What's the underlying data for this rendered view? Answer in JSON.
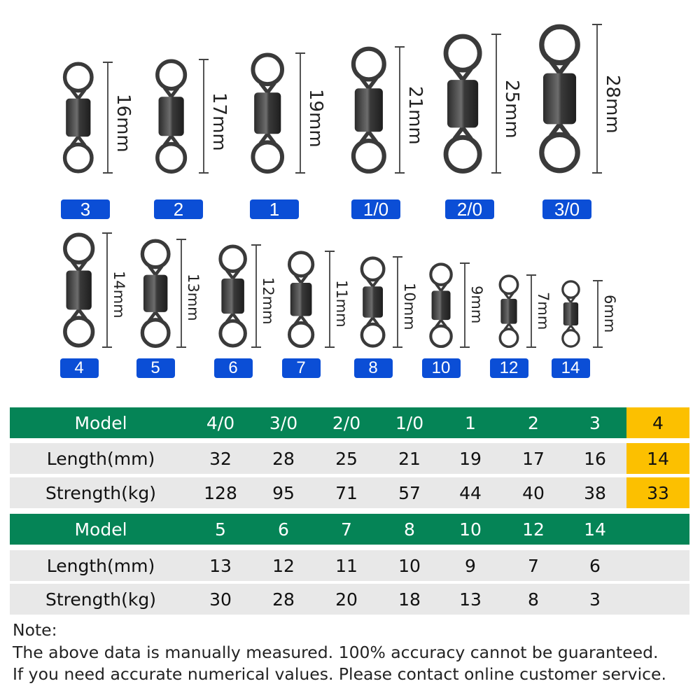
{
  "swivels": {
    "top": [
      {
        "model": "3",
        "length": "16mm"
      },
      {
        "model": "2",
        "length": "17mm"
      },
      {
        "model": "1",
        "length": "19mm"
      },
      {
        "model": "1/0",
        "length": "21mm"
      },
      {
        "model": "2/0",
        "length": "25mm"
      },
      {
        "model": "3/0",
        "length": "28mm"
      }
    ],
    "bottom": [
      {
        "model": "4",
        "length": "14mm"
      },
      {
        "model": "5",
        "length": "13mm"
      },
      {
        "model": "6",
        "length": "12mm"
      },
      {
        "model": "7",
        "length": "11mm"
      },
      {
        "model": "8",
        "length": "10mm"
      },
      {
        "model": "10",
        "length": "9mm"
      },
      {
        "model": "12",
        "length": "7mm"
      },
      {
        "model": "14",
        "length": "6mm"
      }
    ]
  },
  "table": {
    "block1": {
      "model_label": "Model",
      "models": [
        "4/0",
        "3/0",
        "2/0",
        "1/0",
        "1",
        "2",
        "3",
        "4"
      ],
      "length_label": "Length(mm)",
      "lengths": [
        "32",
        "28",
        "25",
        "21",
        "19",
        "17",
        "16",
        "14"
      ],
      "strength_label": "Strength(kg)",
      "strengths": [
        "128",
        "95",
        "71",
        "57",
        "44",
        "40",
        "38",
        "33"
      ]
    },
    "block2": {
      "model_label": "Model",
      "models": [
        "5",
        "6",
        "7",
        "8",
        "10",
        "12",
        "14"
      ],
      "length_label": "Length(mm)",
      "lengths": [
        "13",
        "12",
        "11",
        "10",
        "9",
        "7",
        "6"
      ],
      "strength_label": "Strength(kg)",
      "strengths": [
        "30",
        "28",
        "20",
        "18",
        "13",
        "8",
        "3"
      ]
    }
  },
  "note": {
    "title": "Note:",
    "line1": "The above data is manually measured. 100% accuracy cannot be guaranteed.",
    "line2": "If you need accurate numerical values. Please contact online customer service."
  },
  "colors": {
    "header_green": "#058456",
    "highlight_yellow": "#fcc000",
    "row_gray": "#e8e8e8",
    "tag_blue": "#0b4ed6"
  }
}
